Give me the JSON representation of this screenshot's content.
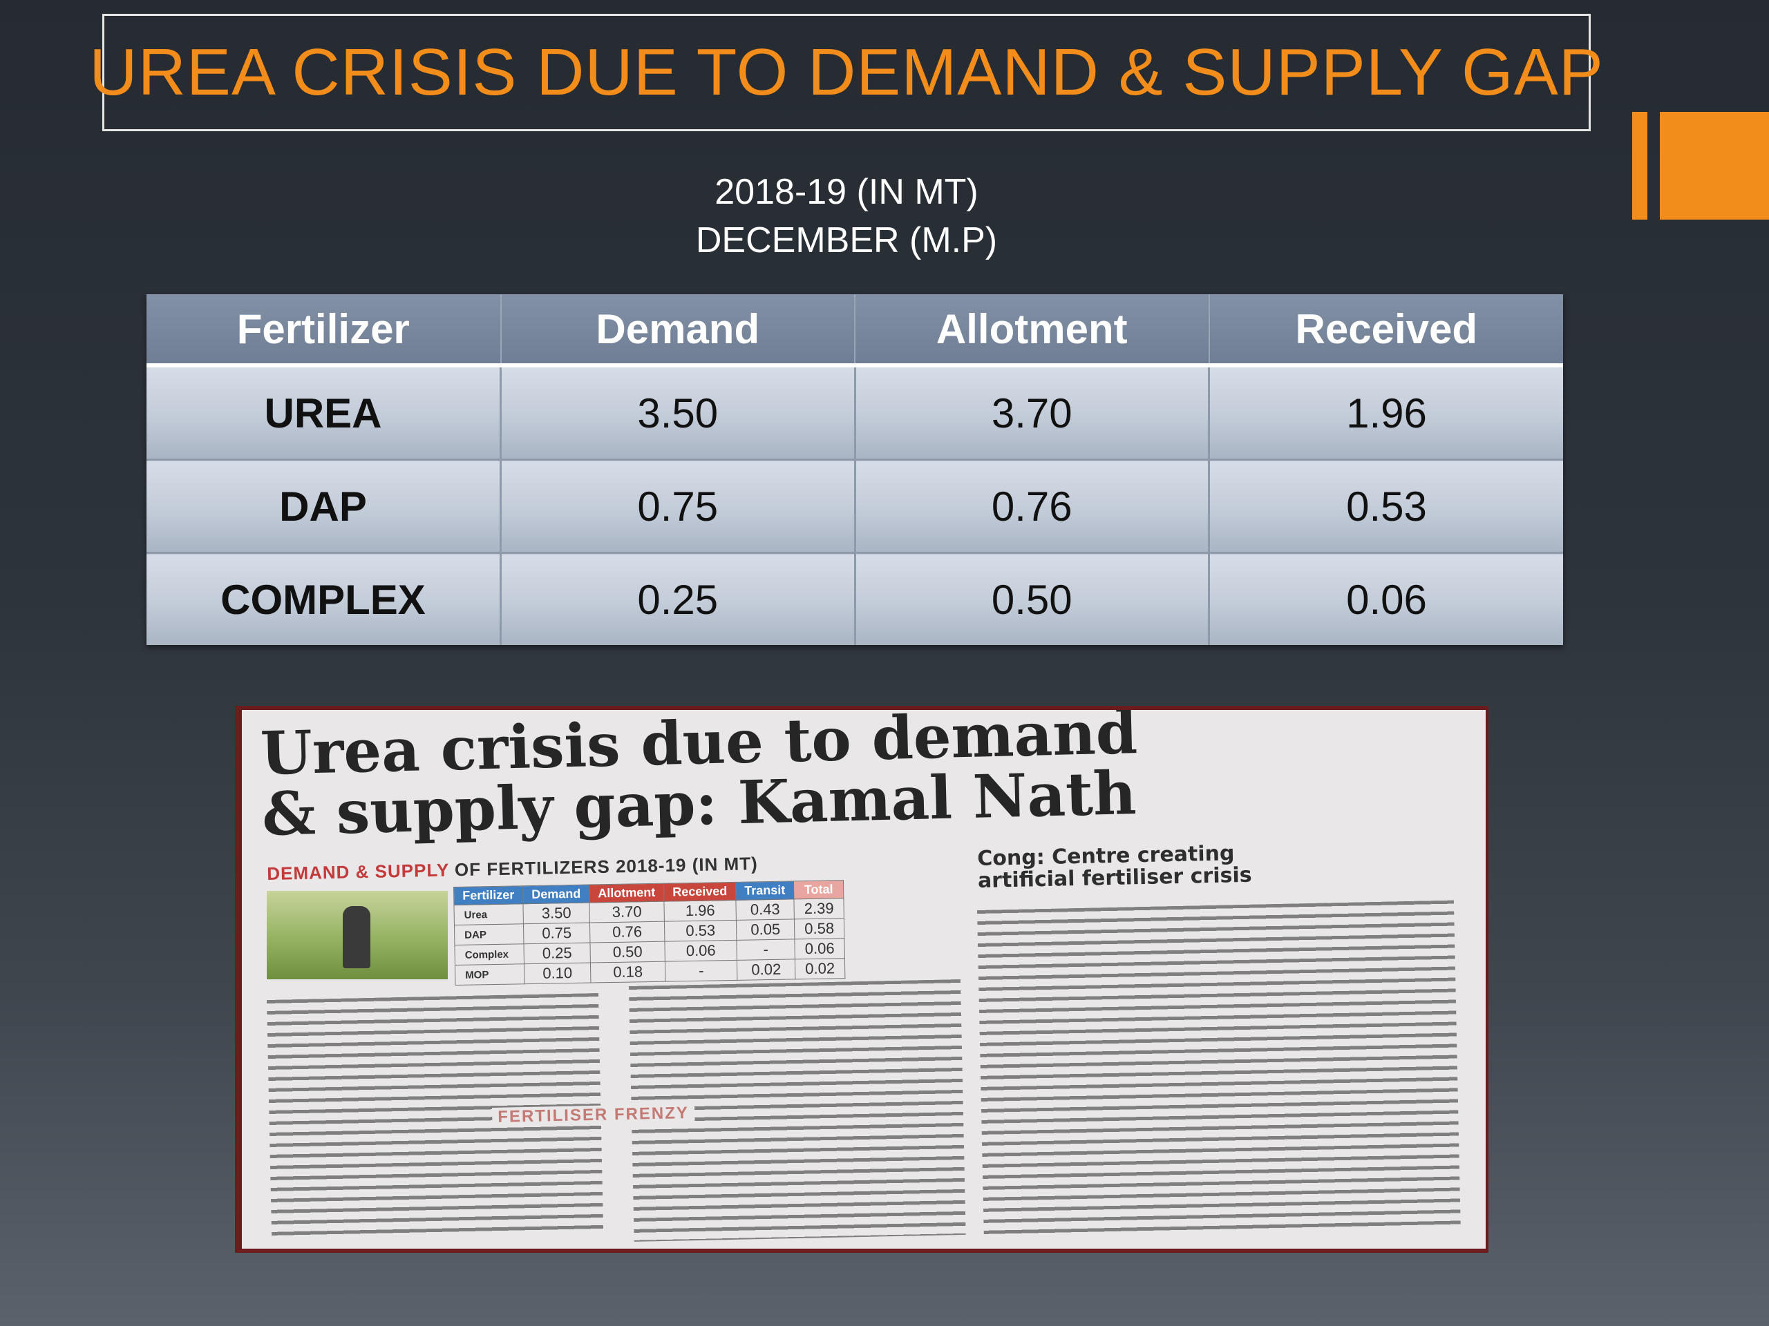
{
  "slide": {
    "title": "UREA CRISIS DUE TO DEMAND & SUPPLY GAP",
    "subtitle_line1": "2018-19 (IN MT)",
    "subtitle_line2": "DECEMBER (M.P)",
    "accent_color": "#f28c1a"
  },
  "table": {
    "headers": [
      "Fertilizer",
      "Demand",
      "Allotment",
      "Received"
    ],
    "rows": [
      [
        "UREA",
        "3.50",
        "3.70",
        "1.96"
      ],
      [
        "DAP",
        "0.75",
        "0.76",
        "0.53"
      ],
      [
        "COMPLEX",
        "0.25",
        "0.50",
        "0.06"
      ]
    ]
  },
  "clipping": {
    "headline_line1": "Urea crisis due to demand",
    "headline_line2": "& supply gap: Kamal Nath",
    "table_caption_red": "DEMAND & SUPPLY",
    "table_caption_rest": " OF FERTILIZERS 2018-19 (IN MT)",
    "mini_headers": [
      "Fertilizer",
      "Demand",
      "Allotment",
      "Received",
      "Transit",
      "Total"
    ],
    "mini_rows": [
      [
        "Urea",
        "3.50",
        "3.70",
        "1.96",
        "0.43",
        "2.39"
      ],
      [
        "DAP",
        "0.75",
        "0.76",
        "0.53",
        "0.05",
        "0.58"
      ],
      [
        "Complex",
        "0.25",
        "0.50",
        "0.06",
        "-",
        "0.06"
      ],
      [
        "MOP",
        "0.10",
        "0.18",
        "-",
        "0.02",
        "0.02"
      ]
    ],
    "side_headline_line1": "Cong: Centre creating",
    "side_headline_line2": "artificial fertiliser crisis",
    "subhead": "FERTILISER FRENZY"
  }
}
